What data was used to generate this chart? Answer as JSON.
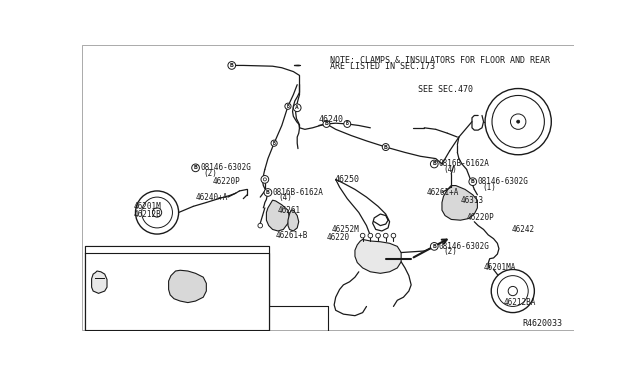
{
  "bg_color": "#ffffff",
  "line_color": "#1a1a1a",
  "fig_width": 6.4,
  "fig_height": 3.72,
  "note_line1": "NOTE: CLAMPS & INSULATORS FOR FLOOR AND REAR",
  "note_line2": "ARE LISTED IN SEC.173",
  "see_sec": "SEE SEC.470",
  "ref_number": "R4620033"
}
